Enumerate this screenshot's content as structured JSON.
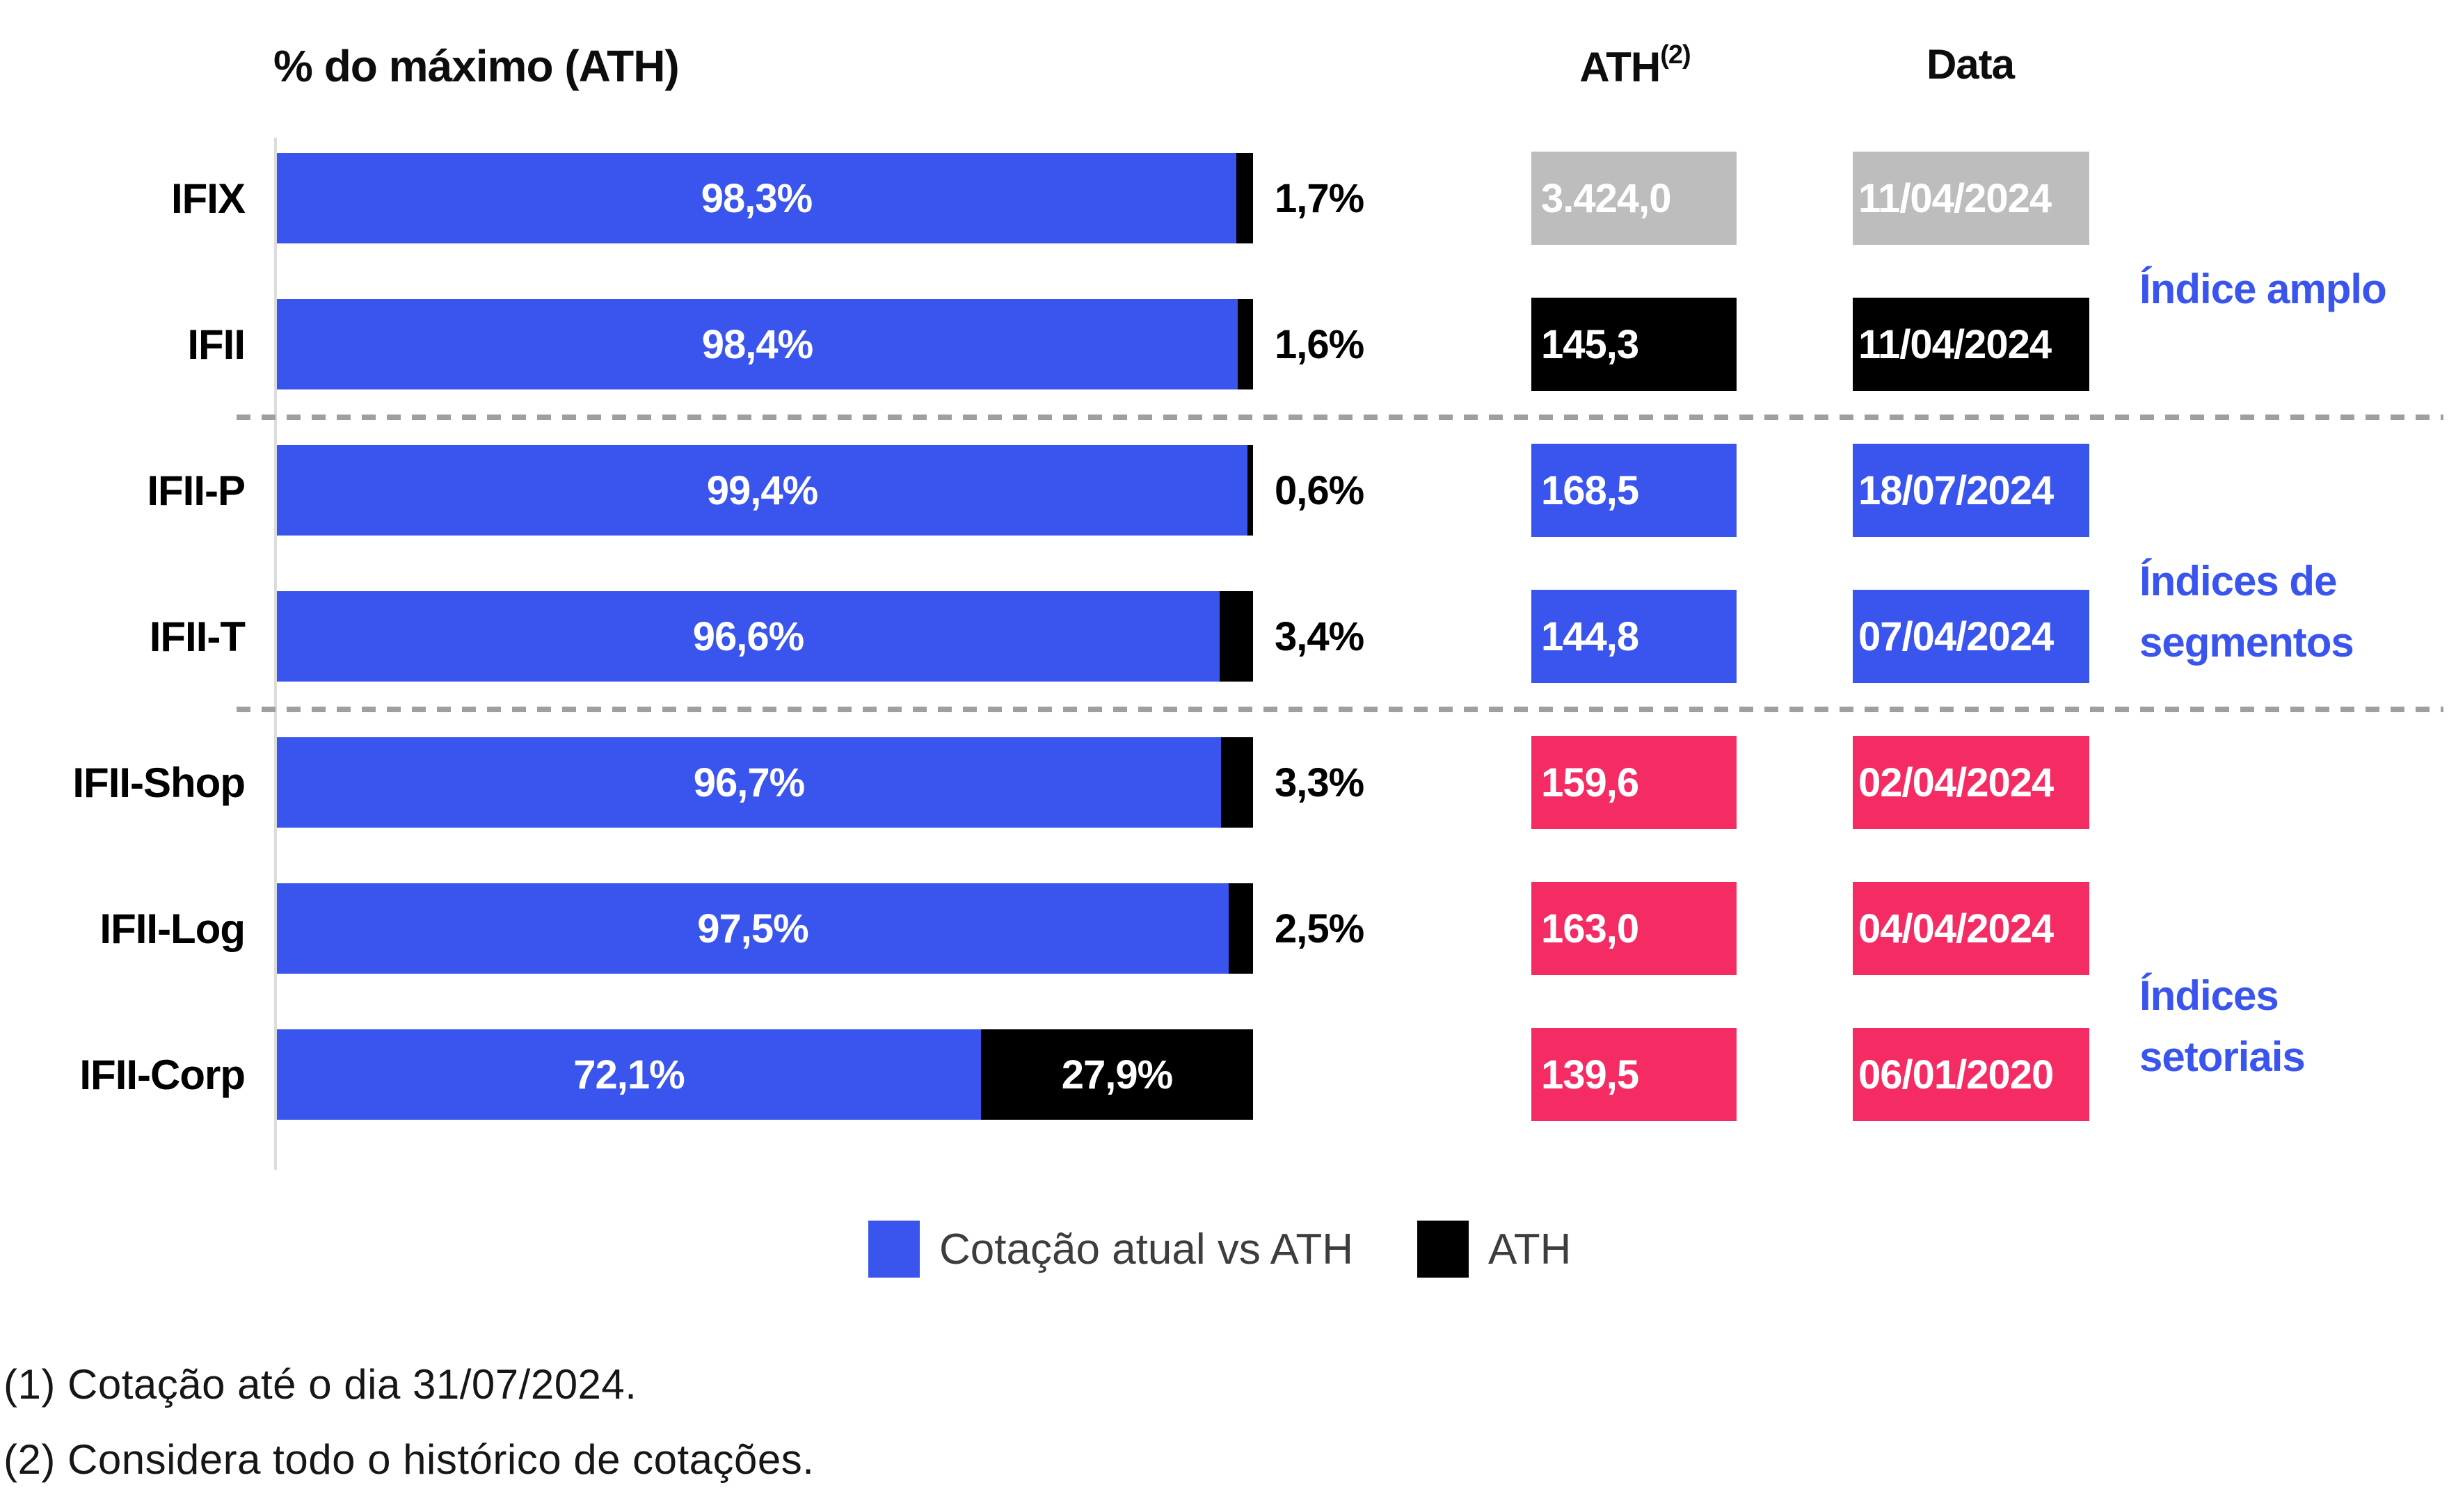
{
  "title": "% do máximo (ATH)",
  "columns": {
    "ath_label": "ATH",
    "ath_sup": "(2)",
    "data_label": "Data"
  },
  "chart_data": {
    "type": "bar",
    "orientation": "horizontal",
    "stacked": true,
    "unit": "%",
    "title": "% do máximo (ATH)",
    "xlim": [
      0,
      100
    ],
    "categories": [
      "IFIX",
      "IFII",
      "IFII-P",
      "IFII-T",
      "IFII-Shop",
      "IFII-Log",
      "IFII-Corp"
    ],
    "series": [
      {
        "name": "Cotação atual vs ATH",
        "color": "#3a55ee",
        "values": [
          98.3,
          98.4,
          99.4,
          96.6,
          96.7,
          97.5,
          72.1
        ]
      },
      {
        "name": "ATH",
        "color": "#000000",
        "values": [
          1.7,
          1.6,
          0.6,
          3.4,
          3.3,
          2.5,
          27.9
        ]
      }
    ],
    "rows": [
      {
        "label": "IFIX",
        "current_pct": "98,3%",
        "rest_pct": "1,7%",
        "ath": "3.424,0",
        "date": "11/04/2024",
        "box_color": "#bdbdbd"
      },
      {
        "label": "IFII",
        "current_pct": "98,4%",
        "rest_pct": "1,6%",
        "ath": "145,3",
        "date": "11/04/2024",
        "box_color": "#000000"
      },
      {
        "label": "IFII-P",
        "current_pct": "99,4%",
        "rest_pct": "0,6%",
        "ath": "168,5",
        "date": "18/07/2024",
        "box_color": "#3a55ee"
      },
      {
        "label": "IFII-T",
        "current_pct": "96,6%",
        "rest_pct": "3,4%",
        "ath": "144,8",
        "date": "07/04/2024",
        "box_color": "#3a55ee"
      },
      {
        "label": "IFII-Shop",
        "current_pct": "96,7%",
        "rest_pct": "3,3%",
        "ath": "159,6",
        "date": "02/04/2024",
        "box_color": "#f52b63"
      },
      {
        "label": "IFII-Log",
        "current_pct": "97,5%",
        "rest_pct": "2,5%",
        "ath": "163,0",
        "date": "04/04/2024",
        "box_color": "#f52b63"
      },
      {
        "label": "IFII-Corp",
        "current_pct": "72,1%",
        "rest_pct": "27,9%",
        "ath": "139,5",
        "date": "06/01/2020",
        "box_color": "#f52b63"
      }
    ],
    "groups": [
      {
        "lines": [
          "Índice amplo"
        ]
      },
      {
        "lines": [
          "Índices de",
          "segmentos"
        ]
      },
      {
        "lines": [
          "Índices",
          "setoriais"
        ]
      }
    ],
    "legend": [
      {
        "label": "Cotação atual vs ATH",
        "color": "#3a55ee"
      },
      {
        "label": "ATH",
        "color": "#000000"
      }
    ],
    "colors": {
      "bar_blue": "#3a55ee",
      "bar_black": "#000000",
      "box_gray": "#bdbdbd",
      "box_pink": "#f52b63",
      "group_label_blue": "#3a55ee"
    }
  },
  "footnotes": [
    "(1) Cotação até o dia 31/07/2024.",
    "(2) Considera todo o histórico de cotações."
  ]
}
